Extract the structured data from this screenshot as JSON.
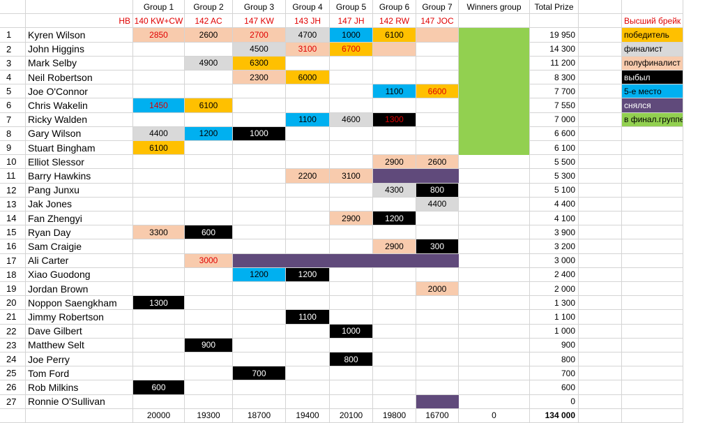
{
  "sheet": {
    "group_headers": [
      "Group 1",
      "Group 2",
      "Group 3",
      "Group 4",
      "Group 5",
      "Group 6",
      "Group 7"
    ],
    "group_breaks": [
      "140 KW+CW",
      "142 AC",
      "147 KW",
      "143 JH",
      "147 JH",
      "142 RW",
      "147 JOC"
    ],
    "hb_label": "HB",
    "winners_group_header": "Winners group",
    "total_prize_header": "Total Prize",
    "legend_title": "Высший брейк",
    "colors": {
      "orange": "#ffc000",
      "grey": "#d9d9d9",
      "peach": "#f8cbad",
      "black": "#000000",
      "blue": "#00b0f0",
      "purple": "#604a7b",
      "green": "#92d050",
      "red_text": "#e00000",
      "grid_line": "#d4d4d4"
    },
    "legend": [
      {
        "label": "победитель",
        "fill": "orange",
        "text": "#000000"
      },
      {
        "label": "финалист",
        "fill": "grey",
        "text": "#000000"
      },
      {
        "label": "полуфиналист",
        "fill": "peach",
        "text": "#000000"
      },
      {
        "label": "выбыл",
        "fill": "black",
        "text": "#ffffff"
      },
      {
        "label": "5-е место",
        "fill": "blue",
        "text": "#000000"
      },
      {
        "label": "снялся",
        "fill": "purple",
        "text": "#ffffff"
      },
      {
        "label": "в финал.группе",
        "fill": "green",
        "text": "#000000"
      }
    ],
    "rows": [
      {
        "num": "1",
        "name": "Kyren Wilson",
        "prize": "19 950",
        "winners": "green",
        "cells": [
          {
            "v": "2850",
            "f": "peach",
            "red": true
          },
          {
            "v": "2600",
            "f": "peach"
          },
          {
            "v": "2700",
            "f": "peach",
            "red": true
          },
          {
            "v": "4700",
            "f": "grey"
          },
          {
            "v": "1000",
            "f": "blue"
          },
          {
            "v": "6100",
            "f": "orange"
          },
          {
            "v": "",
            "f": "peach"
          }
        ]
      },
      {
        "num": "2",
        "name": "John Higgins",
        "prize": "14 300",
        "winners": "green",
        "cells": [
          null,
          null,
          {
            "v": "4500",
            "f": "grey"
          },
          {
            "v": "3100",
            "f": "peach",
            "red": true
          },
          {
            "v": "6700",
            "f": "orange",
            "red": true
          },
          {
            "v": "",
            "f": "peach"
          },
          null
        ]
      },
      {
        "num": "3",
        "name": "Mark Selby",
        "prize": "11 200",
        "winners": "green",
        "cells": [
          null,
          {
            "v": "4900",
            "f": "grey"
          },
          {
            "v": "6300",
            "f": "orange"
          },
          null,
          null,
          null,
          null
        ]
      },
      {
        "num": "4",
        "name": "Neil Robertson",
        "prize": "8 300",
        "winners": "green",
        "cells": [
          null,
          null,
          {
            "v": "2300",
            "f": "peach"
          },
          {
            "v": "6000",
            "f": "orange"
          },
          null,
          null,
          null
        ]
      },
      {
        "num": "5",
        "name": "Joe O'Connor",
        "prize": "7 700",
        "winners": "green",
        "cells": [
          null,
          null,
          null,
          null,
          null,
          {
            "v": "1100",
            "f": "blue"
          },
          {
            "v": "6600",
            "f": "orange",
            "red": true
          }
        ]
      },
      {
        "num": "6",
        "name": "Chris Wakelin",
        "prize": "7 550",
        "winners": "green",
        "cells": [
          {
            "v": "1450",
            "f": "blue",
            "red": true
          },
          {
            "v": "6100",
            "f": "orange"
          },
          null,
          null,
          null,
          null,
          null
        ]
      },
      {
        "num": "7",
        "name": "Ricky Walden",
        "prize": "7 000",
        "winners": "green",
        "cells": [
          null,
          null,
          null,
          {
            "v": "1100",
            "f": "blue"
          },
          {
            "v": "4600",
            "f": "grey"
          },
          {
            "v": "1300",
            "f": "black",
            "red": true
          },
          null
        ]
      },
      {
        "num": "8",
        "name": "Gary Wilson",
        "prize": "6 600",
        "winners": "green",
        "cells": [
          {
            "v": "4400",
            "f": "grey"
          },
          {
            "v": "1200",
            "f": "blue"
          },
          {
            "v": "1000",
            "f": "black"
          },
          null,
          null,
          null,
          null
        ]
      },
      {
        "num": "9",
        "name": "Stuart Bingham",
        "prize": "6 100",
        "winners": "green",
        "cells": [
          {
            "v": "6100",
            "f": "orange"
          },
          null,
          null,
          null,
          null,
          null,
          null
        ]
      },
      {
        "num": "10",
        "name": "Elliot Slessor",
        "prize": "5 500",
        "winners": null,
        "cells": [
          null,
          null,
          null,
          null,
          null,
          {
            "v": "2900",
            "f": "peach"
          },
          {
            "v": "2600",
            "f": "peach"
          }
        ]
      },
      {
        "num": "11",
        "name": "Barry Hawkins",
        "prize": "5 300",
        "winners": null,
        "cells": [
          null,
          null,
          null,
          {
            "v": "2200",
            "f": "peach"
          },
          {
            "v": "3100",
            "f": "peach"
          },
          {
            "v": "",
            "f": "purple"
          },
          {
            "v": "",
            "f": "purple"
          }
        ]
      },
      {
        "num": "12",
        "name": "Pang Junxu",
        "prize": "5 100",
        "winners": null,
        "cells": [
          null,
          null,
          null,
          null,
          null,
          {
            "v": "4300",
            "f": "grey"
          },
          {
            "v": "800",
            "f": "black"
          }
        ]
      },
      {
        "num": "13",
        "name": "Jak Jones",
        "prize": "4 400",
        "winners": null,
        "cells": [
          null,
          null,
          null,
          null,
          null,
          null,
          {
            "v": "4400",
            "f": "grey"
          }
        ]
      },
      {
        "num": "14",
        "name": "Fan Zhengyi",
        "prize": "4 100",
        "winners": null,
        "cells": [
          null,
          null,
          null,
          null,
          {
            "v": "2900",
            "f": "peach"
          },
          {
            "v": "1200",
            "f": "black"
          },
          null
        ]
      },
      {
        "num": "15",
        "name": "Ryan Day",
        "prize": "3 900",
        "winners": null,
        "cells": [
          {
            "v": "3300",
            "f": "peach"
          },
          {
            "v": "600",
            "f": "black"
          },
          null,
          null,
          null,
          null,
          null
        ]
      },
      {
        "num": "16",
        "name": "Sam Craigie",
        "prize": "3 200",
        "winners": null,
        "cells": [
          null,
          null,
          null,
          null,
          null,
          {
            "v": "2900",
            "f": "peach"
          },
          {
            "v": "300",
            "f": "black"
          }
        ]
      },
      {
        "num": "17",
        "name": "Ali Carter",
        "prize": "3 000",
        "winners": null,
        "cells": [
          null,
          {
            "v": "3000",
            "f": "peach",
            "red": true
          },
          {
            "v": "",
            "f": "purple"
          },
          {
            "v": "",
            "f": "purple"
          },
          {
            "v": "",
            "f": "purple"
          },
          {
            "v": "",
            "f": "purple"
          },
          {
            "v": "",
            "f": "purple"
          }
        ]
      },
      {
        "num": "18",
        "name": "Xiao Guodong",
        "prize": "2 400",
        "winners": null,
        "cells": [
          null,
          null,
          {
            "v": "1200",
            "f": "blue"
          },
          {
            "v": "1200",
            "f": "black"
          },
          null,
          null,
          null
        ]
      },
      {
        "num": "19",
        "name": "Jordan Brown",
        "prize": "2 000",
        "winners": null,
        "cells": [
          null,
          null,
          null,
          null,
          null,
          null,
          {
            "v": "2000",
            "f": "peach"
          }
        ]
      },
      {
        "num": "20",
        "name": "Noppon Saengkham",
        "prize": "1 300",
        "winners": null,
        "cells": [
          {
            "v": "1300",
            "f": "black"
          },
          null,
          null,
          null,
          null,
          null,
          null
        ]
      },
      {
        "num": "21",
        "name": "Jimmy Robertson",
        "prize": "1 100",
        "winners": null,
        "cells": [
          null,
          null,
          null,
          {
            "v": "1100",
            "f": "black"
          },
          null,
          null,
          null
        ]
      },
      {
        "num": "22",
        "name": "Dave Gilbert",
        "prize": "1 000",
        "winners": null,
        "cells": [
          null,
          null,
          null,
          null,
          {
            "v": "1000",
            "f": "black"
          },
          null,
          null
        ]
      },
      {
        "num": "23",
        "name": "Matthew Selt",
        "prize": "900",
        "winners": null,
        "cells": [
          null,
          {
            "v": "900",
            "f": "black"
          },
          null,
          null,
          null,
          null,
          null
        ]
      },
      {
        "num": "24",
        "name": "Joe Perry",
        "prize": "800",
        "winners": null,
        "cells": [
          null,
          null,
          null,
          null,
          {
            "v": "800",
            "f": "black"
          },
          null,
          null
        ]
      },
      {
        "num": "25",
        "name": "Tom Ford",
        "prize": "700",
        "winners": null,
        "cells": [
          null,
          null,
          {
            "v": "700",
            "f": "black"
          },
          null,
          null,
          null,
          null
        ]
      },
      {
        "num": "26",
        "name": "Rob Milkins",
        "prize": "600",
        "winners": null,
        "cells": [
          {
            "v": "600",
            "f": "black"
          },
          null,
          null,
          null,
          null,
          null,
          null
        ]
      },
      {
        "num": "27",
        "name": "Ronnie O'Sullivan",
        "prize": "0",
        "winners": null,
        "cells": [
          null,
          null,
          null,
          null,
          null,
          null,
          {
            "v": "",
            "f": "purple"
          }
        ]
      }
    ],
    "totals": [
      "20000",
      "19300",
      "18700",
      "19400",
      "20100",
      "19800",
      "16700"
    ],
    "winners_total": "0",
    "grand_total": "134 000"
  }
}
